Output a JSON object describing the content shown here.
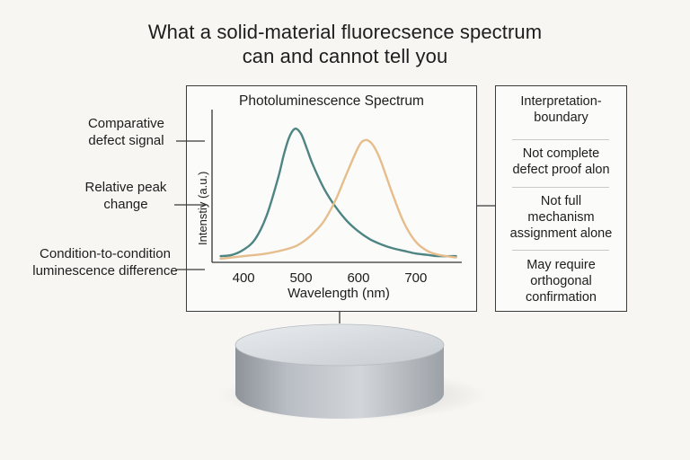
{
  "title_line1": "What a solid-material fluorecsence spectrum",
  "title_line2": "can and cannot tell you",
  "left_labels": [
    {
      "line1": "Comparative",
      "line2": "defect signal"
    },
    {
      "line1": "Relative peak",
      "line2": "change"
    },
    {
      "line1": "Condition-to-condition",
      "line2": "luminescence difference"
    }
  ],
  "side_panel": {
    "heading_line1": "Interpretation-",
    "heading_line2": "boundary",
    "items": [
      {
        "line1": "Not complete",
        "line2": "defect proof alon"
      },
      {
        "line1": "Not full",
        "line2": "mechanism",
        "line3": "assignment alone"
      },
      {
        "line1": "May require",
        "line2": "orthogonal",
        "line3": "confirmation"
      }
    ]
  },
  "colors": {
    "series_a": "#4e8482",
    "series_b": "#e6bd8c",
    "disc_top": "#d7dbe0",
    "disc_side": "#a8adb3"
  },
  "chart_data": {
    "type": "line",
    "title": "Photoluminescence Spectrum",
    "xlabel": "Wavelength (nm)",
    "ylabel": "Intenstiy (a.u.)",
    "xticks": [
      400,
      500,
      600,
      700
    ],
    "xlim": [
      345,
      780
    ],
    "ylim": [
      0,
      1.05
    ],
    "series": [
      {
        "x": [
          360,
          380,
          400,
          420,
          440,
          460,
          470,
          480,
          490,
          500,
          510,
          520,
          540,
          560,
          580,
          600,
          620,
          640,
          660,
          680,
          700,
          720,
          740,
          770
        ],
        "values": [
          0.02,
          0.03,
          0.07,
          0.15,
          0.33,
          0.62,
          0.8,
          0.94,
          1.0,
          0.96,
          0.85,
          0.73,
          0.54,
          0.4,
          0.29,
          0.21,
          0.15,
          0.11,
          0.08,
          0.06,
          0.04,
          0.03,
          0.02,
          0.02
        ]
      },
      {
        "x": [
          360,
          400,
          440,
          480,
          500,
          520,
          540,
          560,
          580,
          600,
          610,
          620,
          630,
          640,
          660,
          680,
          700,
          720,
          740,
          770
        ],
        "values": [
          0.0,
          0.02,
          0.04,
          0.08,
          0.12,
          0.19,
          0.29,
          0.45,
          0.66,
          0.86,
          0.91,
          0.9,
          0.84,
          0.74,
          0.49,
          0.27,
          0.13,
          0.06,
          0.03,
          0.01
        ]
      }
    ]
  }
}
